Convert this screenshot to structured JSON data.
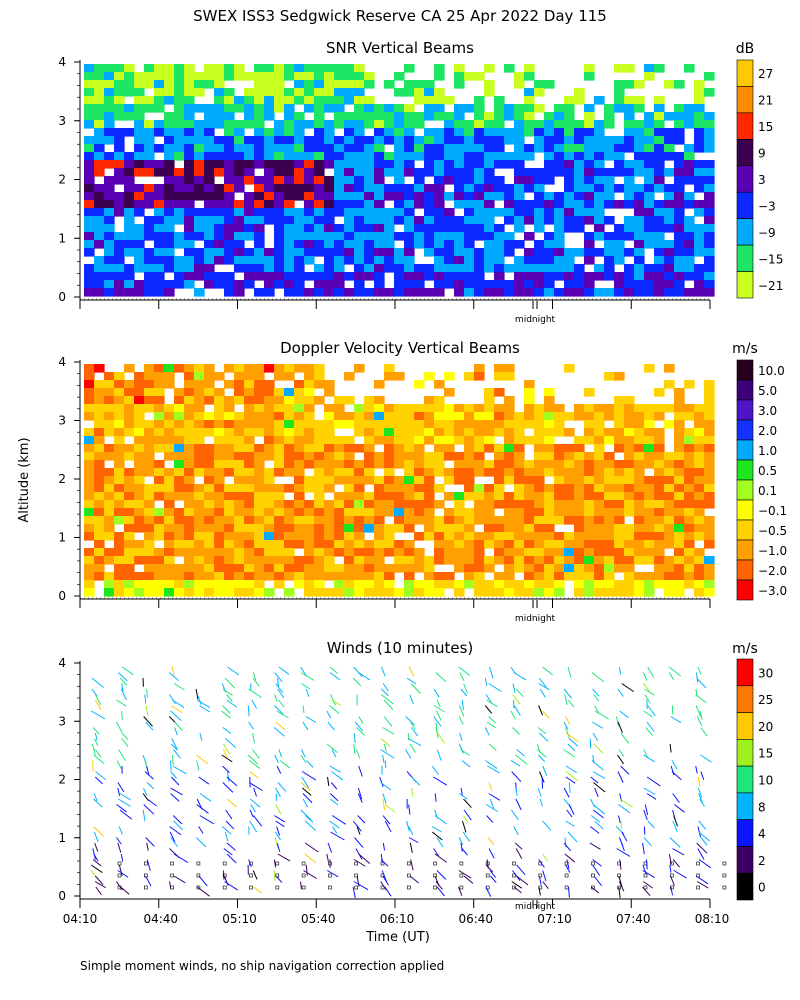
{
  "title": "SWEX ISS3 Sedgwick Reserve CA  25 Apr 2022 Day 115",
  "ylabel": "Altitude (km)",
  "footnote": "Simple moment winds, no ship navigation correction applied",
  "chart_data": [
    {
      "type": "heatmap",
      "title": "SNR Vertical Beams",
      "colorbar_title": "dB",
      "colorbar_labels": [
        "27",
        "21",
        "15",
        "9",
        "3",
        "−3",
        "−9",
        "−15",
        "−21"
      ],
      "colorbar_colors": [
        "#ffc800",
        "#ff8c00",
        "#ff2800",
        "#3c0050",
        "#5a00b4",
        "#0a28ff",
        "#00aaff",
        "#1ee664",
        "#c8ff1e"
      ],
      "colorbar_values": [
        27,
        21,
        15,
        9,
        3,
        -3,
        -9,
        -15,
        -21
      ],
      "ylim": [
        0,
        4
      ],
      "yticks": [
        "0",
        "1",
        "2",
        "3",
        "4"
      ],
      "midnight_label": "midnight",
      "profile": [
        {
          "alt": 0.3,
          "snr": 0
        },
        {
          "alt": 1.0,
          "snr": -5
        },
        {
          "alt": 1.8,
          "snr": 2
        },
        {
          "alt": 2.5,
          "snr": -4
        },
        {
          "alt": 3.2,
          "snr": -12
        },
        {
          "alt": 3.9,
          "snr": -18
        }
      ]
    },
    {
      "type": "heatmap",
      "title": "Doppler Velocity Vertical Beams",
      "colorbar_title": "m/s",
      "colorbar_labels": [
        "10.0",
        "5.0",
        "3.0",
        "2.0",
        "1.0",
        "0.5",
        "0.1",
        "−0.1",
        "−0.5",
        "−1.0",
        "−2.0",
        "−3.0"
      ],
      "colorbar_colors": [
        "#28001e",
        "#3c0078",
        "#5014c8",
        "#1432ff",
        "#00aaff",
        "#1ee61e",
        "#a0ff1e",
        "#ffff00",
        "#ffd200",
        "#ffa000",
        "#ff6400",
        "#ff0000"
      ],
      "colorbar_values": [
        10.0,
        5.0,
        3.0,
        2.0,
        1.0,
        0.5,
        0.1,
        -0.1,
        -0.5,
        -1.0,
        -2.0,
        -3.0
      ],
      "ylim": [
        0,
        4
      ],
      "yticks": [
        "0",
        "1",
        "2",
        "3",
        "4"
      ],
      "midnight_label": "midnight"
    },
    {
      "type": "scatter",
      "title": "Winds (10 minutes)",
      "colorbar_title": "m/s",
      "colorbar_labels": [
        "30",
        "25",
        "20",
        "15",
        "10",
        "8",
        "4",
        "2",
        "0"
      ],
      "colorbar_colors": [
        "#ff0000",
        "#ff7800",
        "#ffc800",
        "#a0f01e",
        "#1ee678",
        "#00b4ff",
        "#0a14ff",
        "#3c0064",
        "#000000"
      ],
      "colorbar_values": [
        30,
        25,
        20,
        15,
        10,
        8,
        4,
        2,
        0
      ],
      "ylim": [
        0,
        4
      ],
      "yticks": [
        "0",
        "1",
        "2",
        "3",
        "4"
      ],
      "midnight_label": "midnight",
      "xlabel": "Time (UT)",
      "xticks": [
        "04:10",
        "04:40",
        "05:10",
        "05:40",
        "06:10",
        "06:40",
        "07:10",
        "07:40",
        "08:10"
      ]
    }
  ]
}
